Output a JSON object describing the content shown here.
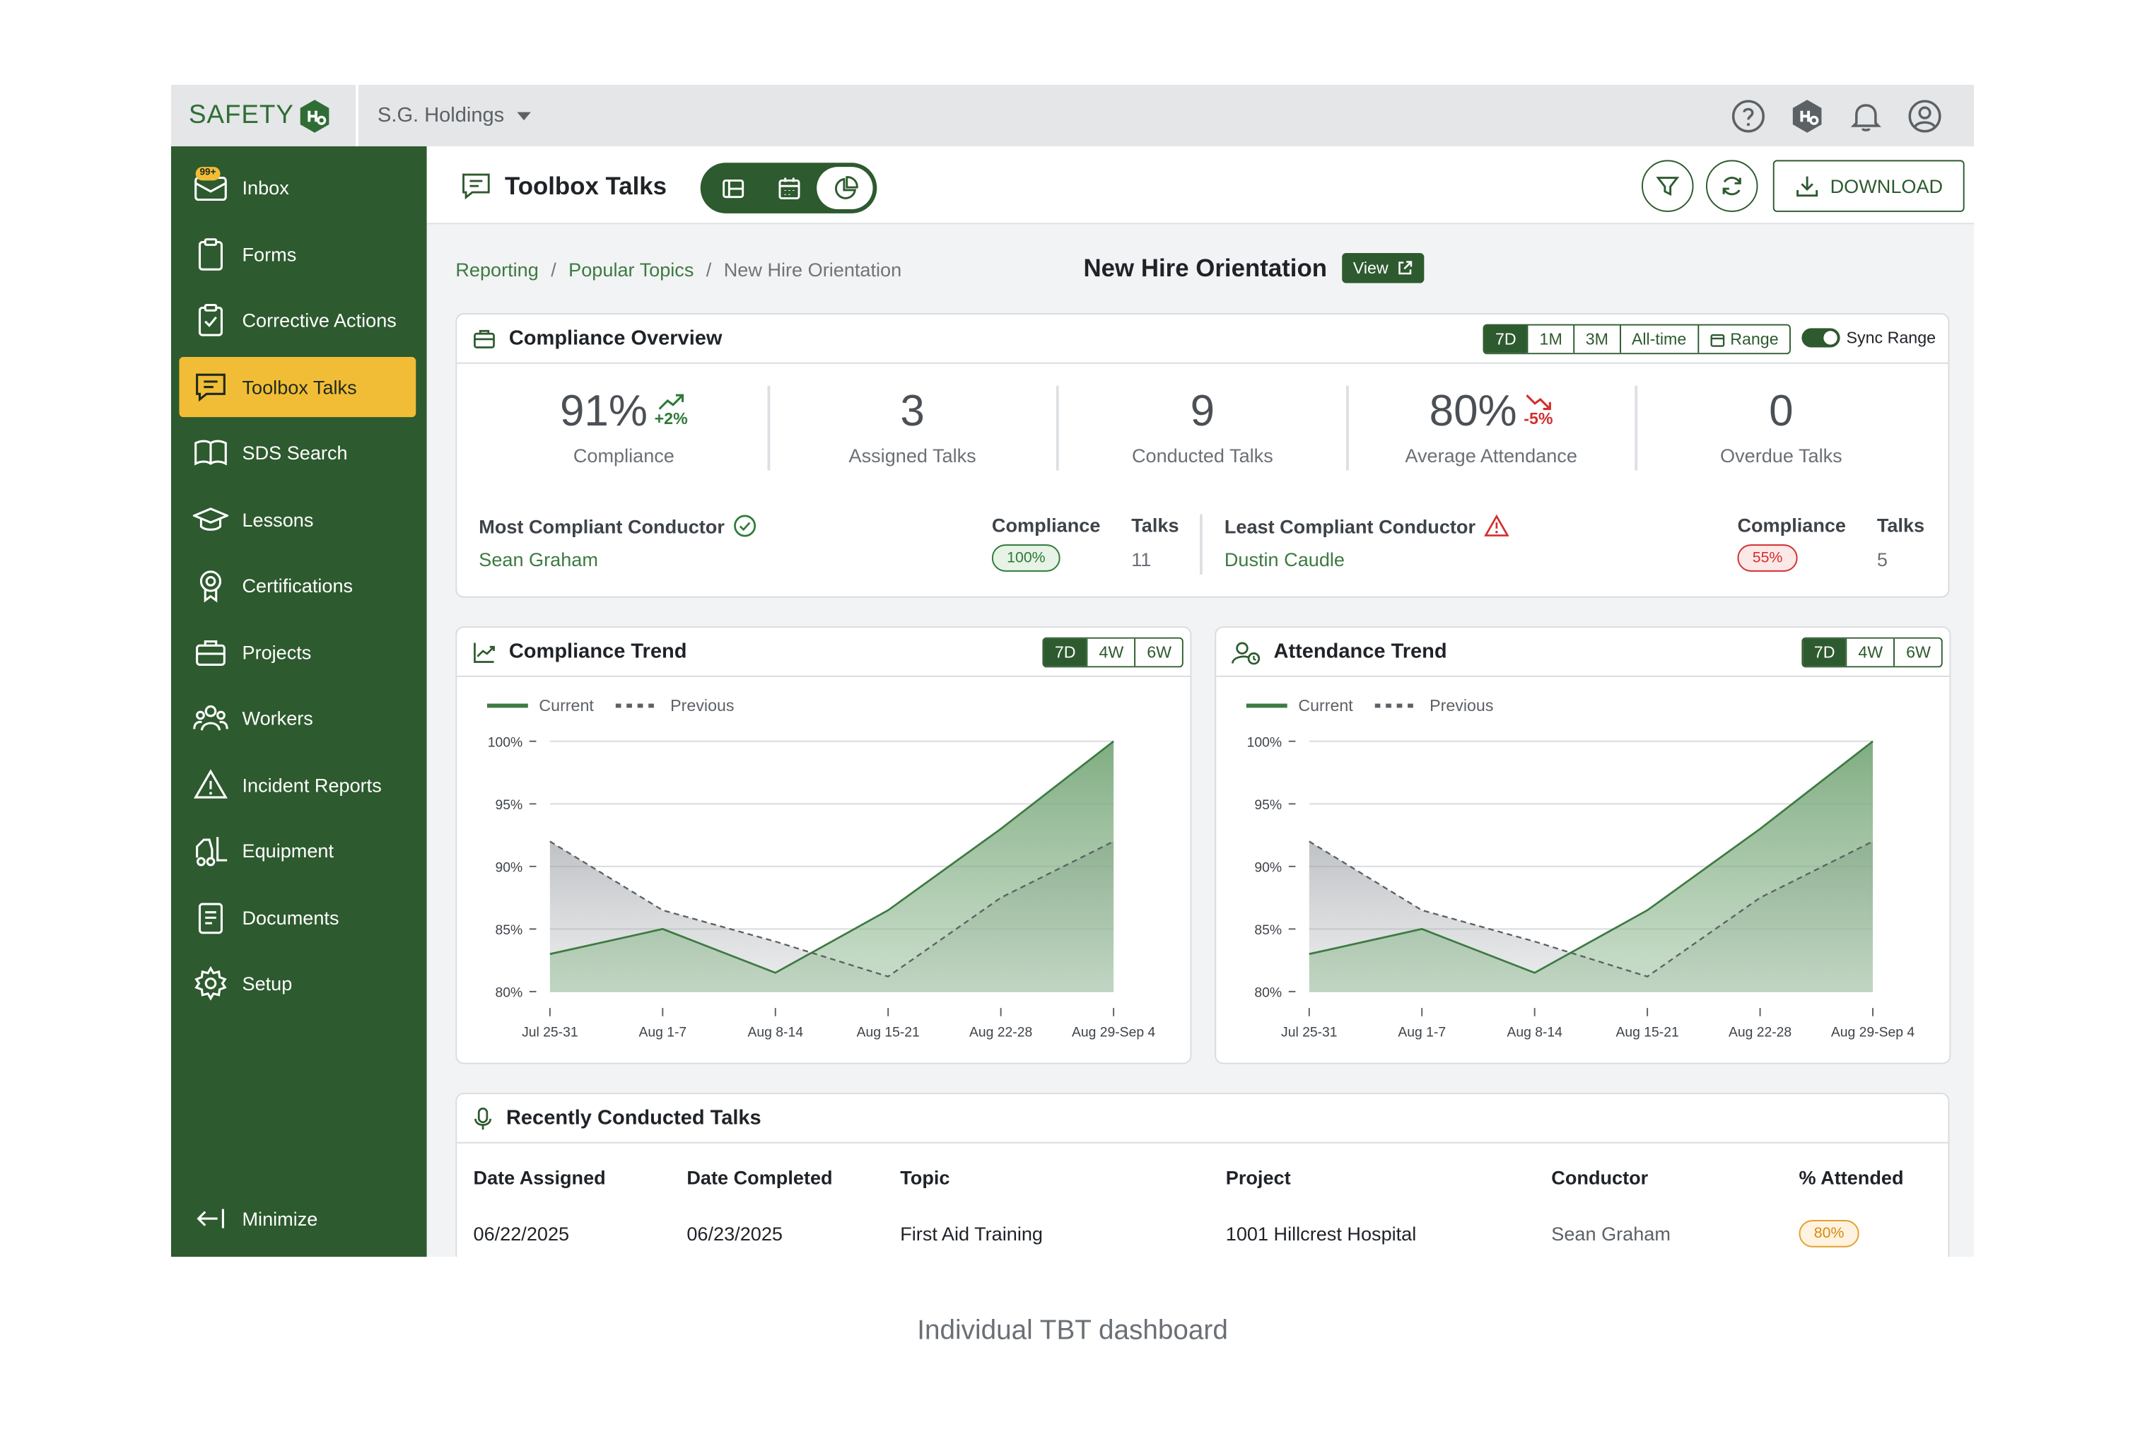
{
  "app": {
    "logo_text": "SAFETY",
    "org_name": "S.G. Holdings"
  },
  "topbar_icons": [
    "help-icon",
    "hexagon-logo-icon",
    "bell-icon",
    "user-icon"
  ],
  "sidebar": {
    "items": [
      {
        "label": "Inbox",
        "icon": "inbox-icon",
        "badge": "99+"
      },
      {
        "label": "Forms",
        "icon": "clipboard-icon"
      },
      {
        "label": "Corrective Actions",
        "icon": "clipboard-check-icon"
      },
      {
        "label": "Toolbox Talks",
        "icon": "chat-icon",
        "active": true
      },
      {
        "label": "SDS Search",
        "icon": "book-icon"
      },
      {
        "label": "Lessons",
        "icon": "graduation-cap-icon"
      },
      {
        "label": "Certifications",
        "icon": "award-icon"
      },
      {
        "label": "Projects",
        "icon": "briefcase-icon"
      },
      {
        "label": "Workers",
        "icon": "users-icon"
      },
      {
        "label": "Incident Reports",
        "icon": "warning-icon"
      },
      {
        "label": "Equipment",
        "icon": "forklift-icon"
      },
      {
        "label": "Documents",
        "icon": "document-icon"
      },
      {
        "label": "Setup",
        "icon": "gear-icon"
      }
    ],
    "minimize_label": "Minimize"
  },
  "header": {
    "title": "Toolbox Talks",
    "download_label": "DOWNLOAD"
  },
  "breadcrumb": [
    "Reporting",
    "Popular Topics",
    "New Hire Orientation"
  ],
  "page": {
    "title": "New Hire Orientation",
    "view_label": "View"
  },
  "overview": {
    "title": "Compliance Overview",
    "ranges": [
      "7D",
      "1M",
      "3M",
      "All-time",
      "Range"
    ],
    "active_range": "7D",
    "sync_label": "Sync Range",
    "kpis": [
      {
        "value": "91%",
        "delta": "+2%",
        "trend": "up",
        "label": "Compliance"
      },
      {
        "value": "3",
        "label": "Assigned Talks"
      },
      {
        "value": "9",
        "label": "Conducted Talks"
      },
      {
        "value": "80%",
        "delta": "-5%",
        "trend": "down",
        "label": "Average Attendance"
      },
      {
        "value": "0",
        "label": "Overdue Talks"
      }
    ],
    "most": {
      "label": "Most Compliant Conductor",
      "name": "Sean Graham",
      "compliance_label": "Compliance",
      "compliance": "100%",
      "talks_label": "Talks",
      "talks": "11"
    },
    "least": {
      "label": "Least Compliant Conductor",
      "name": "Dustin Caudle",
      "compliance_label": "Compliance",
      "compliance": "55%",
      "talks_label": "Talks",
      "talks": "5"
    }
  },
  "compliance_trend": {
    "title": "Compliance Trend",
    "ranges": [
      "7D",
      "4W",
      "6W"
    ],
    "legend_current": "Current",
    "legend_previous": "Previous"
  },
  "attendance_trend": {
    "title": "Attendance Trend",
    "ranges": [
      "7D",
      "4W",
      "6W"
    ],
    "legend_current": "Current",
    "legend_previous": "Previous"
  },
  "chart_data": [
    {
      "type": "area",
      "x": [
        "Jul 25-31",
        "Aug 1-7",
        "Aug 8-14",
        "Aug 15-21",
        "Aug 22-28",
        "Aug 29-Sep 4"
      ],
      "yticks": [
        "100%",
        "95%",
        "90%",
        "85%",
        "80%"
      ],
      "ylim": [
        80,
        100
      ],
      "series": [
        {
          "name": "Current",
          "values": [
            83,
            85,
            81.5,
            86.5,
            93,
            100
          ]
        },
        {
          "name": "Previous",
          "values": [
            92,
            86.5,
            84,
            81.2,
            87.5,
            92
          ]
        }
      ],
      "grid": true,
      "legend": "top-left"
    },
    {
      "type": "area",
      "x": [
        "Jul 25-31",
        "Aug 1-7",
        "Aug 8-14",
        "Aug 15-21",
        "Aug 22-28",
        "Aug 29-Sep 4"
      ],
      "yticks": [
        "100%",
        "95%",
        "90%",
        "85%",
        "80%"
      ],
      "ylim": [
        80,
        100
      ],
      "series": [
        {
          "name": "Current",
          "values": [
            83,
            85,
            81.5,
            86.5,
            93,
            100
          ]
        },
        {
          "name": "Previous",
          "values": [
            92,
            86.5,
            84,
            81.2,
            87.5,
            92
          ]
        }
      ],
      "grid": true,
      "legend": "top-left"
    }
  ],
  "recent": {
    "title": "Recently Conducted Talks",
    "columns": [
      "Date Assigned",
      "Date Completed",
      "Topic",
      "Project",
      "Conductor",
      "% Attended"
    ],
    "rows": [
      {
        "date_assigned": "06/22/2025",
        "date_completed": "06/23/2025",
        "topic": "First Aid Training",
        "project": "1001 Hillcrest Hospital",
        "conductor": "Sean Graham",
        "attended": "80%"
      }
    ]
  },
  "caption": "Individual TBT dashboard",
  "colors": {
    "brand_green": "#2d5a2e",
    "accent_yellow": "#f2bd36",
    "positive": "#2f7a38",
    "negative": "#d32f2f",
    "warning": "#e3a12c"
  }
}
